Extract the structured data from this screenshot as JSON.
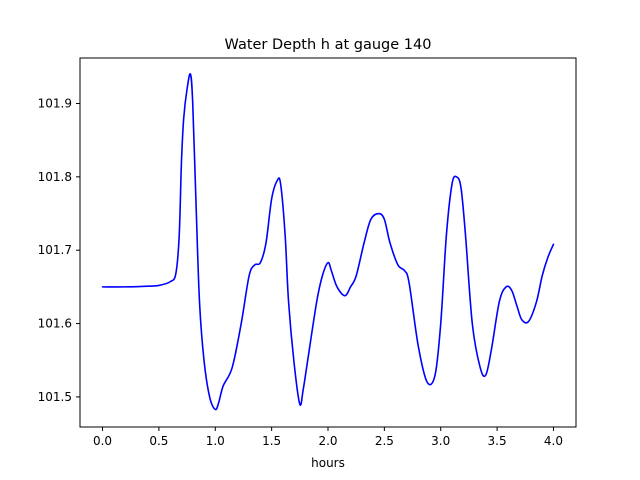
{
  "chart_data": {
    "type": "line",
    "title": "Water Depth h at gauge 140",
    "xlabel": "hours",
    "ylabel": "",
    "xlim": [
      -0.2,
      4.2
    ],
    "ylim": [
      101.459,
      101.962
    ],
    "xticks": [
      0.0,
      0.5,
      1.0,
      1.5,
      2.0,
      2.5,
      3.0,
      3.5,
      4.0
    ],
    "xtick_labels": [
      "0.0",
      "0.5",
      "1.0",
      "1.5",
      "2.0",
      "2.5",
      "3.0",
      "3.5",
      "4.0"
    ],
    "yticks": [
      101.5,
      101.6,
      101.7,
      101.8,
      101.9
    ],
    "ytick_labels": [
      "101.5",
      "101.6",
      "101.7",
      "101.8",
      "101.9"
    ],
    "grid": false,
    "series": [
      {
        "color": "#0000ff",
        "x": [
          0.0,
          0.2,
          0.4,
          0.5,
          0.6,
          0.65,
          0.68,
          0.7,
          0.72,
          0.75,
          0.78,
          0.8,
          0.83,
          0.86,
          0.9,
          0.95,
          1.0,
          1.03,
          1.07,
          1.15,
          1.23,
          1.3,
          1.35,
          1.4,
          1.45,
          1.5,
          1.55,
          1.58,
          1.62,
          1.65,
          1.7,
          1.75,
          1.78,
          1.82,
          1.9,
          1.95,
          2.0,
          2.03,
          2.08,
          2.15,
          2.2,
          2.25,
          2.32,
          2.38,
          2.45,
          2.5,
          2.55,
          2.62,
          2.68,
          2.72,
          2.8,
          2.88,
          2.95,
          3.0,
          3.05,
          3.1,
          3.14,
          3.18,
          3.22,
          3.28,
          3.35,
          3.4,
          3.45,
          3.52,
          3.58,
          3.63,
          3.68,
          3.72,
          3.78,
          3.85,
          3.9,
          3.95,
          4.0
        ],
        "y": [
          101.65,
          101.65,
          101.651,
          101.652,
          101.657,
          101.668,
          101.72,
          101.82,
          101.88,
          101.92,
          101.94,
          101.9,
          101.76,
          101.63,
          101.55,
          101.5,
          101.483,
          101.492,
          101.515,
          101.54,
          101.6,
          101.665,
          101.68,
          101.683,
          101.71,
          101.77,
          101.795,
          101.79,
          101.72,
          101.63,
          101.545,
          101.49,
          101.51,
          101.55,
          101.63,
          101.665,
          101.683,
          101.672,
          101.65,
          101.638,
          101.65,
          101.665,
          101.71,
          101.742,
          101.75,
          101.742,
          101.71,
          101.68,
          101.672,
          101.655,
          101.57,
          101.52,
          101.53,
          101.6,
          101.72,
          101.79,
          101.8,
          101.785,
          101.72,
          101.6,
          101.54,
          101.53,
          101.565,
          101.63,
          101.65,
          101.645,
          101.622,
          101.605,
          101.603,
          101.63,
          101.665,
          101.69,
          101.708
        ]
      }
    ]
  }
}
